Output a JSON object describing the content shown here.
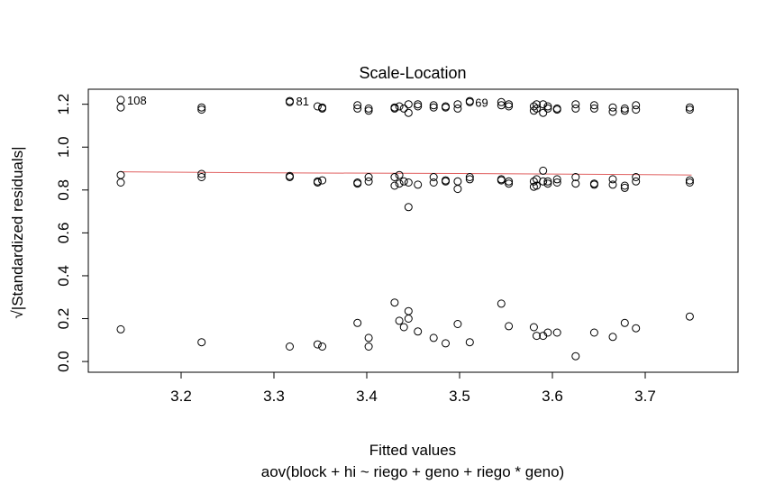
{
  "chart_data": {
    "type": "scatter",
    "title": "Scale-Location",
    "xlabel": "Fitted values",
    "xsublabel": "aov(block + hi ~ riego + geno + riego * geno)",
    "ylabel": "Standardized residuals",
    "ylabel_symbol": "√|Standardized residuals|",
    "xlim": [
      3.1,
      3.8
    ],
    "ylim": [
      -0.05,
      1.27
    ],
    "xticks": [
      3.2,
      3.3,
      3.4,
      3.5,
      3.6,
      3.7
    ],
    "xtick_labels": [
      "3.2",
      "3.3",
      "3.4",
      "3.5",
      "3.6",
      "3.7"
    ],
    "yticks": [
      0.0,
      0.2,
      0.4,
      0.6,
      0.8,
      1.0,
      1.2
    ],
    "ytick_labels": [
      "0.0",
      "0.2",
      "0.4",
      "0.6",
      "0.8",
      "1.0",
      "1.2"
    ],
    "smooth_color": "#e06060",
    "smooth_line": [
      [
        3.135,
        0.885
      ],
      [
        3.3,
        0.88
      ],
      [
        3.5,
        0.877
      ],
      [
        3.7,
        0.872
      ],
      [
        3.75,
        0.87
      ]
    ],
    "annotations": [
      {
        "label": "108",
        "x": 3.135,
        "y": 1.22
      },
      {
        "label": "81",
        "x": 3.317,
        "y": 1.215
      },
      {
        "label": "69",
        "x": 3.51,
        "y": 1.21
      }
    ],
    "points": [
      [
        3.135,
        1.22
      ],
      [
        3.135,
        1.185
      ],
      [
        3.135,
        0.87
      ],
      [
        3.135,
        0.835
      ],
      [
        3.135,
        0.15
      ],
      [
        3.222,
        1.185
      ],
      [
        3.222,
        1.175
      ],
      [
        3.222,
        0.875
      ],
      [
        3.222,
        0.86
      ],
      [
        3.222,
        0.09
      ],
      [
        3.317,
        1.215
      ],
      [
        3.317,
        1.21
      ],
      [
        3.317,
        0.865
      ],
      [
        3.317,
        0.86
      ],
      [
        3.317,
        0.07
      ],
      [
        3.347,
        1.19
      ],
      [
        3.347,
        0.835
      ],
      [
        3.347,
        0.84
      ],
      [
        3.347,
        0.08
      ],
      [
        3.352,
        1.185
      ],
      [
        3.352,
        1.18
      ],
      [
        3.352,
        0.845
      ],
      [
        3.352,
        0.07
      ],
      [
        3.39,
        1.195
      ],
      [
        3.39,
        1.18
      ],
      [
        3.39,
        0.835
      ],
      [
        3.39,
        0.83
      ],
      [
        3.39,
        0.18
      ],
      [
        3.402,
        1.18
      ],
      [
        3.402,
        1.17
      ],
      [
        3.402,
        0.86
      ],
      [
        3.402,
        0.84
      ],
      [
        3.402,
        0.11
      ],
      [
        3.402,
        0.07
      ],
      [
        3.43,
        1.185
      ],
      [
        3.43,
        1.18
      ],
      [
        3.43,
        0.86
      ],
      [
        3.43,
        0.82
      ],
      [
        3.43,
        0.275
      ],
      [
        3.435,
        1.19
      ],
      [
        3.435,
        0.87
      ],
      [
        3.435,
        0.83
      ],
      [
        3.435,
        0.19
      ],
      [
        3.44,
        1.18
      ],
      [
        3.44,
        0.84
      ],
      [
        3.44,
        0.16
      ],
      [
        3.445,
        1.2
      ],
      [
        3.445,
        1.16
      ],
      [
        3.445,
        0.835
      ],
      [
        3.445,
        0.72
      ],
      [
        3.445,
        0.235
      ],
      [
        3.445,
        0.2
      ],
      [
        3.455,
        1.2
      ],
      [
        3.455,
        1.19
      ],
      [
        3.455,
        0.825
      ],
      [
        3.455,
        0.14
      ],
      [
        3.472,
        1.195
      ],
      [
        3.472,
        1.185
      ],
      [
        3.472,
        0.86
      ],
      [
        3.472,
        0.835
      ],
      [
        3.472,
        0.11
      ],
      [
        3.485,
        1.19
      ],
      [
        3.485,
        1.185
      ],
      [
        3.485,
        0.845
      ],
      [
        3.485,
        0.84
      ],
      [
        3.485,
        0.085
      ],
      [
        3.498,
        1.2
      ],
      [
        3.498,
        1.18
      ],
      [
        3.498,
        0.84
      ],
      [
        3.498,
        0.805
      ],
      [
        3.498,
        0.175
      ],
      [
        3.511,
        1.215
      ],
      [
        3.511,
        1.21
      ],
      [
        3.511,
        0.86
      ],
      [
        3.511,
        0.85
      ],
      [
        3.511,
        0.09
      ],
      [
        3.545,
        1.21
      ],
      [
        3.545,
        1.195
      ],
      [
        3.545,
        0.85
      ],
      [
        3.545,
        0.845
      ],
      [
        3.545,
        0.27
      ],
      [
        3.553,
        1.2
      ],
      [
        3.553,
        1.19
      ],
      [
        3.553,
        0.84
      ],
      [
        3.553,
        0.83
      ],
      [
        3.553,
        0.165
      ],
      [
        3.58,
        1.19
      ],
      [
        3.58,
        1.17
      ],
      [
        3.58,
        0.84
      ],
      [
        3.58,
        0.815
      ],
      [
        3.58,
        0.16
      ],
      [
        3.583,
        1.2
      ],
      [
        3.583,
        1.18
      ],
      [
        3.583,
        0.85
      ],
      [
        3.583,
        0.82
      ],
      [
        3.583,
        0.12
      ],
      [
        3.59,
        1.2
      ],
      [
        3.59,
        1.16
      ],
      [
        3.59,
        0.89
      ],
      [
        3.59,
        0.84
      ],
      [
        3.59,
        0.12
      ],
      [
        3.595,
        1.19
      ],
      [
        3.595,
        1.18
      ],
      [
        3.595,
        0.83
      ],
      [
        3.595,
        0.84
      ],
      [
        3.595,
        0.135
      ],
      [
        3.605,
        1.18
      ],
      [
        3.605,
        1.175
      ],
      [
        3.605,
        0.85
      ],
      [
        3.605,
        0.835
      ],
      [
        3.605,
        0.135
      ],
      [
        3.625,
        1.2
      ],
      [
        3.625,
        1.18
      ],
      [
        3.625,
        0.86
      ],
      [
        3.625,
        0.83
      ],
      [
        3.625,
        0.025
      ],
      [
        3.645,
        1.195
      ],
      [
        3.645,
        1.18
      ],
      [
        3.645,
        0.83
      ],
      [
        3.645,
        0.825
      ],
      [
        3.645,
        0.135
      ],
      [
        3.665,
        1.185
      ],
      [
        3.665,
        1.165
      ],
      [
        3.665,
        0.85
      ],
      [
        3.665,
        0.825
      ],
      [
        3.665,
        0.115
      ],
      [
        3.678,
        1.18
      ],
      [
        3.678,
        1.17
      ],
      [
        3.678,
        0.82
      ],
      [
        3.678,
        0.81
      ],
      [
        3.678,
        0.18
      ],
      [
        3.69,
        1.195
      ],
      [
        3.69,
        1.175
      ],
      [
        3.69,
        0.86
      ],
      [
        3.69,
        0.84
      ],
      [
        3.69,
        0.155
      ],
      [
        3.748,
        1.185
      ],
      [
        3.748,
        1.175
      ],
      [
        3.748,
        0.845
      ],
      [
        3.748,
        0.835
      ],
      [
        3.748,
        0.21
      ]
    ]
  }
}
